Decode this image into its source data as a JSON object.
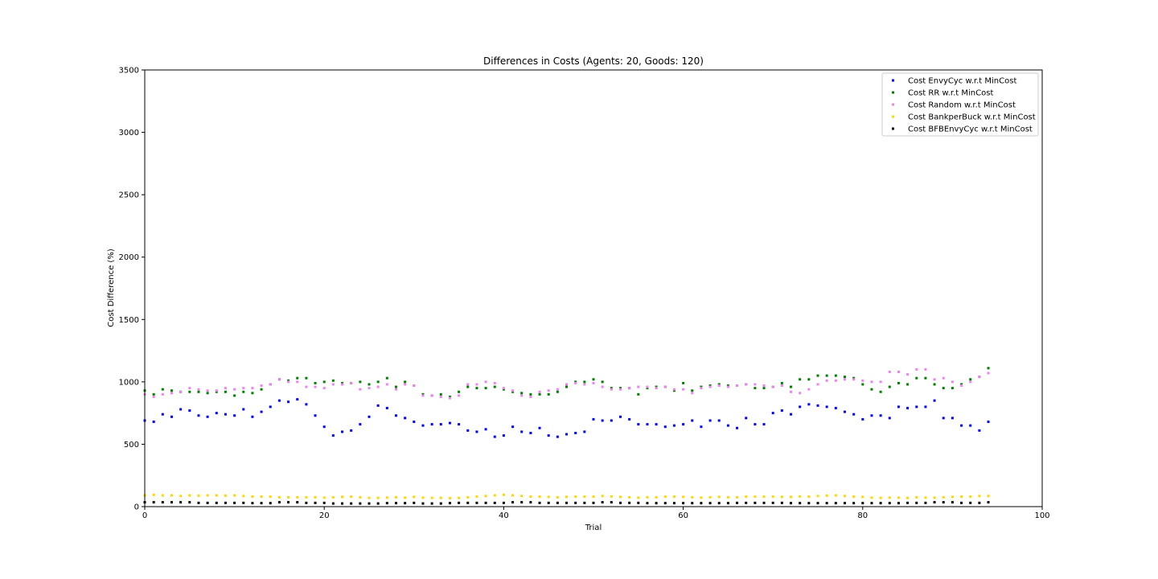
{
  "chart_data": {
    "type": "scatter",
    "title": "Differences in Costs (Agents: 20, Goods: 120)",
    "xlabel": "Trial",
    "ylabel": "Cost Difference (%)",
    "xlim": [
      0,
      100
    ],
    "ylim": [
      0,
      3500
    ],
    "xticks": [
      0,
      20,
      40,
      60,
      80,
      100
    ],
    "yticks": [
      0,
      500,
      1000,
      1500,
      2000,
      2500,
      3000,
      3500
    ],
    "grid": false,
    "legend_position": "upper-right",
    "x": [
      0,
      1,
      2,
      3,
      4,
      5,
      6,
      7,
      8,
      9,
      10,
      11,
      12,
      13,
      14,
      15,
      16,
      17,
      18,
      19,
      20,
      21,
      22,
      23,
      24,
      25,
      26,
      27,
      28,
      29,
      30,
      31,
      32,
      33,
      34,
      35,
      36,
      37,
      38,
      39,
      40,
      41,
      42,
      43,
      44,
      45,
      46,
      47,
      48,
      49,
      50,
      51,
      52,
      53,
      54,
      55,
      56,
      57,
      58,
      59,
      60,
      61,
      62,
      63,
      64,
      65,
      66,
      67,
      68,
      69,
      70,
      71,
      72,
      73,
      74,
      75,
      76,
      77,
      78,
      79,
      80,
      81,
      82,
      83,
      84,
      85,
      86,
      87,
      88,
      89,
      90,
      91,
      92,
      93,
      94
    ],
    "series": [
      {
        "name": "Cost EnvyCyc w.r.t MinCost",
        "color": "#0000ff",
        "values": [
          690,
          680,
          740,
          720,
          780,
          770,
          730,
          720,
          750,
          740,
          730,
          780,
          720,
          760,
          800,
          850,
          840,
          860,
          820,
          730,
          640,
          570,
          600,
          610,
          660,
          720,
          810,
          790,
          730,
          710,
          680,
          650,
          660,
          660,
          670,
          660,
          610,
          600,
          620,
          560,
          570,
          640,
          600,
          590,
          630,
          570,
          560,
          580,
          590,
          600,
          700,
          690,
          690,
          720,
          700,
          660,
          660,
          660,
          640,
          650,
          660,
          690,
          640,
          690,
          690,
          650,
          630,
          710,
          660,
          660,
          750,
          770,
          740,
          800,
          820,
          810,
          800,
          790,
          760,
          740,
          700,
          730,
          730,
          710,
          800,
          790,
          800,
          800,
          850,
          710,
          710,
          650,
          650,
          610,
          680
        ]
      },
      {
        "name": "Cost RR w.r.t MinCost",
        "color": "#008000",
        "values": [
          930,
          900,
          940,
          930,
          920,
          920,
          920,
          910,
          920,
          920,
          890,
          920,
          910,
          940,
          980,
          1020,
          1010,
          1030,
          1030,
          990,
          1000,
          1010,
          990,
          990,
          1000,
          980,
          1000,
          1030,
          960,
          1000,
          970,
          900,
          890,
          900,
          880,
          920,
          960,
          950,
          950,
          960,
          940,
          920,
          910,
          900,
          900,
          900,
          920,
          960,
          1000,
          1000,
          1020,
          1000,
          950,
          950,
          950,
          900,
          950,
          960,
          960,
          930,
          990,
          930,
          960,
          970,
          980,
          970,
          970,
          980,
          950,
          950,
          960,
          990,
          960,
          1020,
          1020,
          1050,
          1050,
          1050,
          1040,
          1030,
          980,
          940,
          920,
          960,
          990,
          980,
          1030,
          1030,
          980,
          950,
          950,
          980,
          1020,
          1040,
          1110
        ]
      },
      {
        "name": "Cost Random w.r.t MinCost",
        "color": "#ee82ee",
        "values": [
          900,
          880,
          900,
          910,
          920,
          950,
          940,
          930,
          930,
          950,
          940,
          950,
          950,
          970,
          980,
          1020,
          1000,
          1000,
          960,
          960,
          950,
          980,
          980,
          990,
          940,
          950,
          960,
          980,
          940,
          980,
          970,
          890,
          890,
          880,
          870,
          890,
          980,
          980,
          1000,
          990,
          950,
          930,
          890,
          880,
          920,
          930,
          940,
          980,
          990,
          980,
          990,
          960,
          940,
          940,
          950,
          960,
          960,
          950,
          960,
          940,
          940,
          910,
          950,
          960,
          970,
          960,
          970,
          980,
          980,
          970,
          960,
          970,
          920,
          910,
          940,
          980,
          1010,
          1010,
          1020,
          1020,
          1010,
          1000,
          1000,
          1080,
          1080,
          1060,
          1100,
          1100,
          1020,
          1030,
          1000,
          970,
          1000,
          1040,
          1070
        ]
      },
      {
        "name": "Cost BankperBuck w.r.t MinCost",
        "color": "#ffd700",
        "values": [
          90,
          95,
          90,
          90,
          85,
          90,
          88,
          90,
          90,
          88,
          90,
          85,
          80,
          80,
          80,
          75,
          75,
          75,
          75,
          75,
          72,
          75,
          78,
          80,
          75,
          70,
          70,
          72,
          75,
          72,
          78,
          72,
          70,
          70,
          68,
          70,
          75,
          80,
          85,
          90,
          95,
          90,
          85,
          80,
          80,
          78,
          75,
          78,
          80,
          80,
          80,
          85,
          82,
          78,
          75,
          72,
          75,
          75,
          80,
          80,
          78,
          75,
          72,
          75,
          78,
          75,
          75,
          80,
          80,
          80,
          80,
          78,
          78,
          82,
          80,
          85,
          88,
          90,
          85,
          80,
          78,
          72,
          70,
          72,
          72,
          70,
          75,
          72,
          72,
          75,
          78,
          80,
          80,
          85,
          85
        ]
      },
      {
        "name": "Cost BFBEnvyCyc w.r.t MinCost",
        "color": "#000000",
        "values": [
          35,
          35,
          35,
          35,
          35,
          35,
          30,
          30,
          30,
          30,
          30,
          30,
          28,
          28,
          28,
          35,
          35,
          35,
          30,
          30,
          30,
          25,
          25,
          25,
          25,
          25,
          25,
          28,
          28,
          28,
          30,
          25,
          25,
          25,
          28,
          30,
          30,
          30,
          30,
          30,
          30,
          35,
          35,
          35,
          30,
          30,
          30,
          30,
          30,
          30,
          30,
          35,
          35,
          30,
          30,
          30,
          28,
          28,
          28,
          28,
          28,
          28,
          28,
          28,
          28,
          28,
          30,
          30,
          30,
          30,
          30,
          30,
          28,
          28,
          28,
          28,
          28,
          28,
          28,
          28,
          28,
          28,
          28,
          28,
          28,
          30,
          30,
          30,
          35,
          35,
          35,
          30,
          30,
          30,
          35
        ]
      }
    ]
  }
}
